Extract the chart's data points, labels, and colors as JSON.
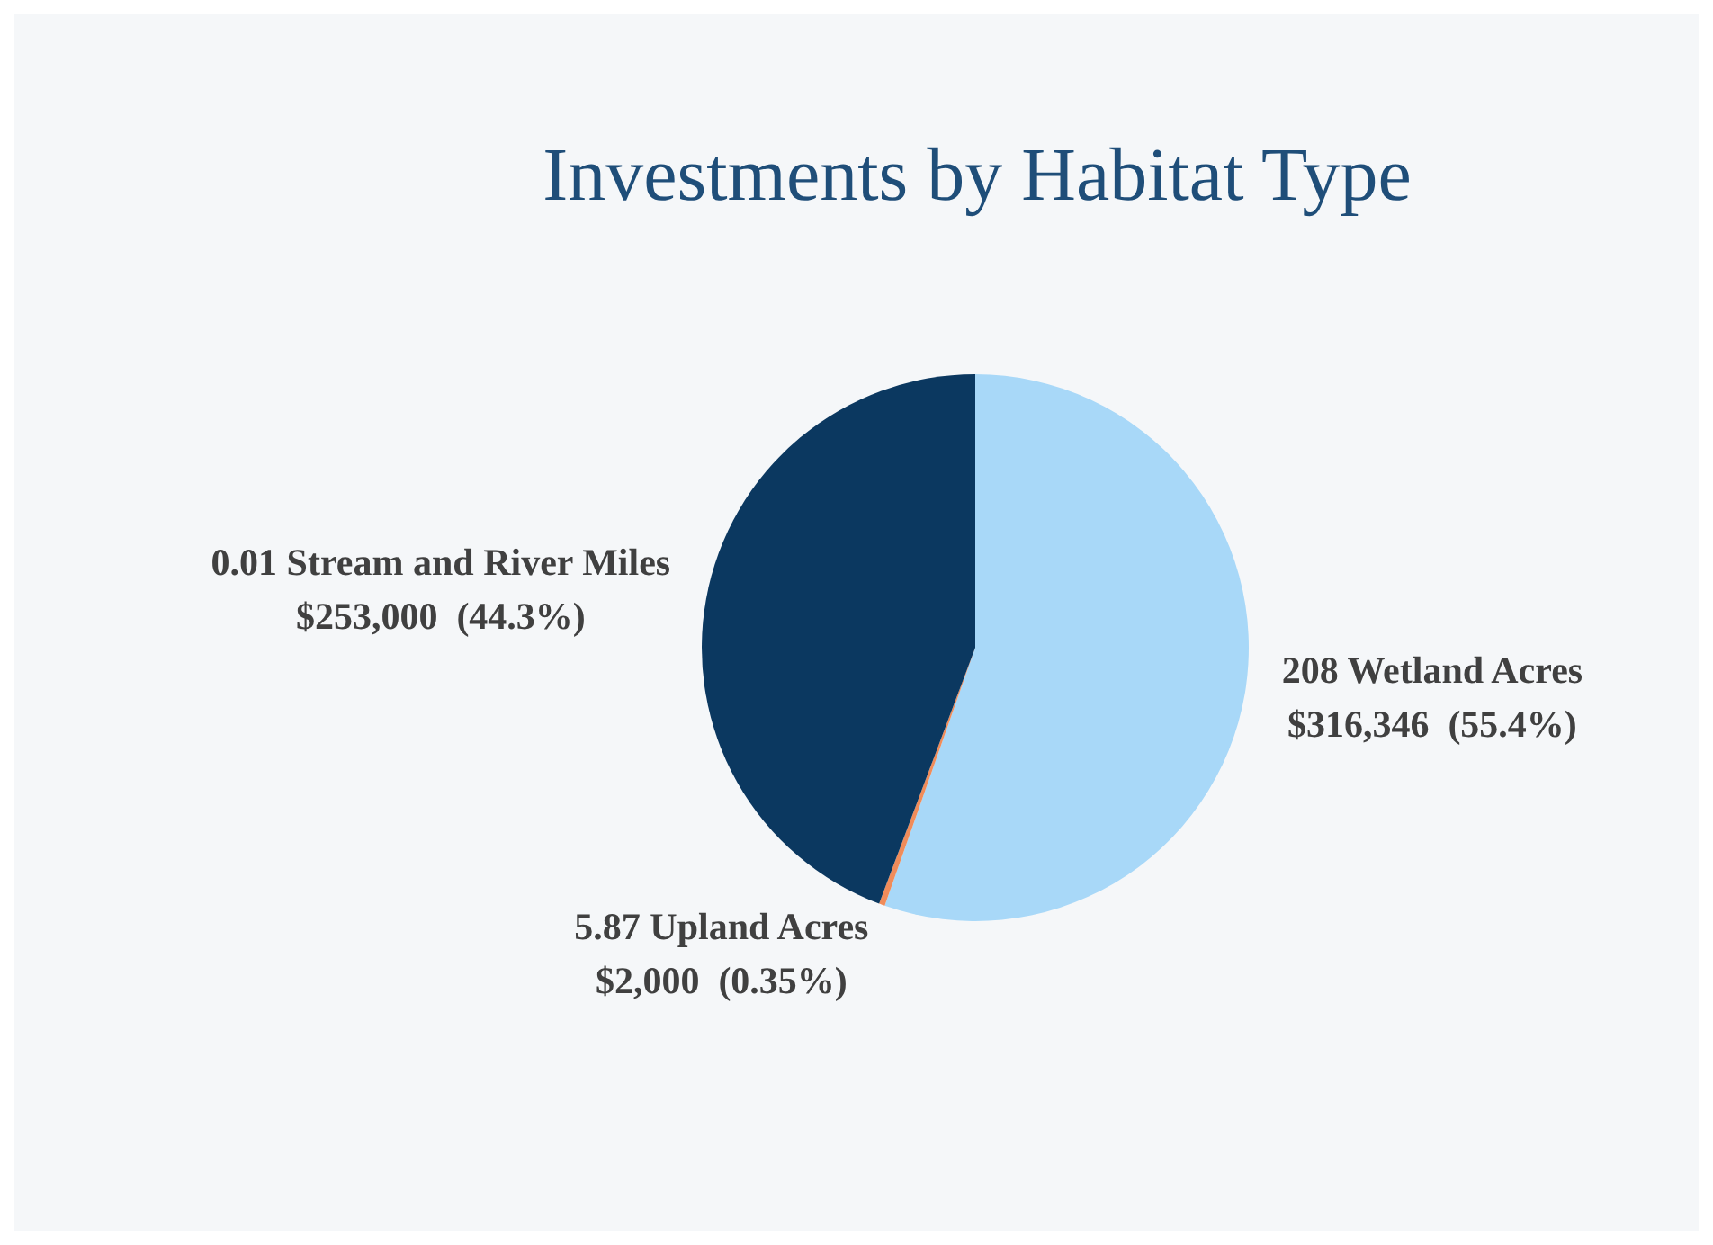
{
  "chart_data": {
    "type": "pie",
    "title": "Investments by Habitat Type",
    "categories": [
      "208 Wetland Acres",
      "5.87 Upland Acres",
      "0.01 Stream and River Miles"
    ],
    "values": [
      316346,
      2000,
      253000
    ],
    "value_labels": [
      "$316,346  (55.4%)",
      "$2,000  (0.35%)",
      "$253,000  (44.3%)"
    ],
    "colors": [
      "#a8d8f8",
      "#f08c5a",
      "#0b3860"
    ],
    "legend": false
  }
}
